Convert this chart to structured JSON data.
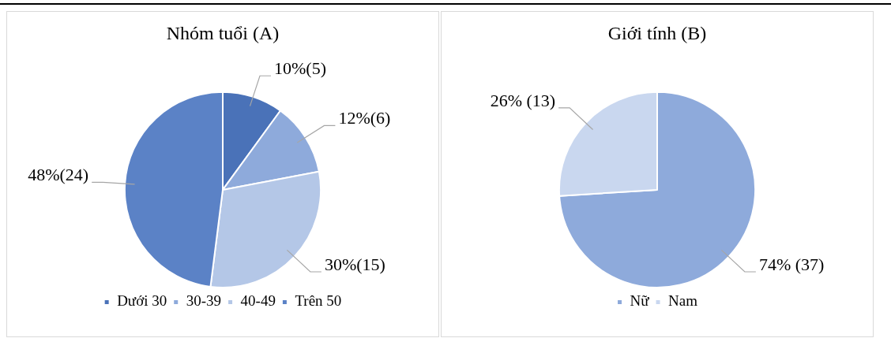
{
  "chart_data": [
    {
      "type": "pie",
      "title": "Nhóm tuổi (A)",
      "categories": [
        "Dưới 30",
        "30-39",
        "40-49",
        "Trên 50"
      ],
      "values": [
        5,
        6,
        15,
        24
      ],
      "colors": [
        "#4a72b8",
        "#8eaadb",
        "#b4c7e7",
        "#5b82c6"
      ],
      "value_labels": [
        "10%(5)",
        "12%(6)",
        "30%(15)",
        "48%(24)"
      ],
      "legend": "bottom"
    },
    {
      "type": "pie",
      "title": "Giới tính (B)",
      "categories": [
        "Nữ",
        "Nam"
      ],
      "values": [
        37,
        13
      ],
      "colors": [
        "#8eaadb",
        "#c9d7ef"
      ],
      "value_labels": [
        "74% (37)",
        "26% (13)"
      ],
      "legend": "bottom"
    }
  ]
}
